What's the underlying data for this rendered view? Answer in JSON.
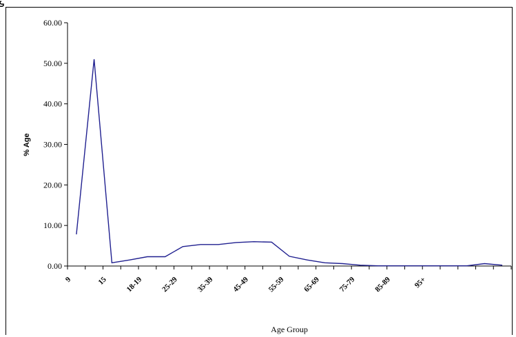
{
  "chart_data": {
    "type": "line",
    "xlabel": "Age Group",
    "ylabel": "% Age",
    "ylim": [
      0,
      60
    ],
    "yticks": [
      "0.00",
      "10.00",
      "20.00",
      "30.00",
      "40.00",
      "50.00",
      "60.00"
    ],
    "tick_labels": [
      "9",
      "15",
      "18-19",
      "25-29",
      "35-39",
      "45-49",
      "55-59",
      "65-69",
      "75-79",
      "85-89",
      "95+"
    ],
    "series": [
      {
        "color": "#1f1f8f",
        "values": [
          7.8,
          51.0,
          0.8,
          1.5,
          2.3,
          2.3,
          4.8,
          5.3,
          5.3,
          5.8,
          6.0,
          5.9,
          2.4,
          1.5,
          0.8,
          0.6,
          0.2,
          0.05,
          0.05,
          0.05,
          0.05,
          0.05,
          0.05,
          0.6,
          0.2
        ]
      }
    ],
    "legend": "none",
    "grid": false
  }
}
